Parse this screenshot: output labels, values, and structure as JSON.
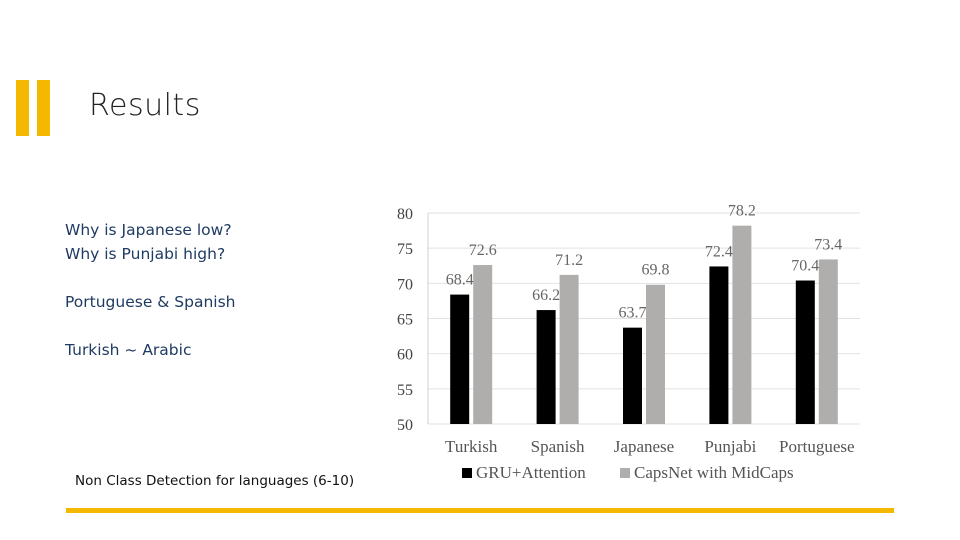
{
  "slide": {
    "title": "Results",
    "notes": [
      "Why is Japanese low?",
      "Why is Punjabi high?",
      "Portuguese & Spanish",
      "Turkish ~ Arabic"
    ],
    "caption": "Non Class Detection for languages (6-10)"
  },
  "colors": {
    "accent": "#f5b800",
    "notes_text": "#1f3b63",
    "series_gru": "#000000",
    "series_caps": "#b0adad"
  },
  "chart_data": {
    "type": "bar",
    "categories": [
      "Turkish",
      "Spanish",
      "Japanese",
      "Punjabi",
      "Portuguese"
    ],
    "series": [
      {
        "name": "GRU+Attention",
        "values": [
          68.4,
          66.2,
          63.7,
          72.4,
          70.4
        ],
        "color": "#000000"
      },
      {
        "name": "CapsNet with MidCaps",
        "values": [
          72.6,
          71.2,
          69.8,
          78.2,
          73.4
        ],
        "color": "#b0adad"
      }
    ],
    "ylim": [
      50,
      80
    ],
    "yticks": [
      80,
      75,
      70,
      65,
      60,
      55,
      50
    ],
    "grid": true,
    "legend": "bottom",
    "title": "",
    "xlabel": "",
    "ylabel": ""
  }
}
